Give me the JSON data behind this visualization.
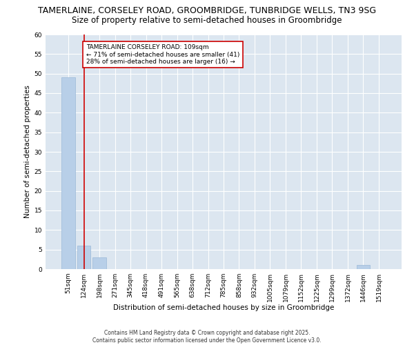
{
  "title1": "TAMERLAINE, CORSELEY ROAD, GROOMBRIDGE, TUNBRIDGE WELLS, TN3 9SG",
  "title2": "Size of property relative to semi-detached houses in Groombridge",
  "xlabel": "Distribution of semi-detached houses by size in Groombridge",
  "ylabel": "Number of semi-detached properties",
  "categories": [
    "51sqm",
    "124sqm",
    "198sqm",
    "271sqm",
    "345sqm",
    "418sqm",
    "491sqm",
    "565sqm",
    "638sqm",
    "712sqm",
    "785sqm",
    "858sqm",
    "932sqm",
    "1005sqm",
    "1079sqm",
    "1152sqm",
    "1225sqm",
    "1299sqm",
    "1372sqm",
    "1446sqm",
    "1519sqm"
  ],
  "values": [
    49,
    6,
    3,
    0,
    0,
    0,
    0,
    0,
    0,
    0,
    0,
    0,
    0,
    0,
    0,
    0,
    0,
    0,
    0,
    1,
    0
  ],
  "bar_color": "#b8cfe8",
  "bar_edge_color": "#9ab8d8",
  "bg_color": "#dce6f0",
  "grid_color": "#ffffff",
  "red_line_x": 1.0,
  "annotation_text": "TAMERLAINE CORSELEY ROAD: 109sqm\n← 71% of semi-detached houses are smaller (41)\n28% of semi-detached houses are larger (16) →",
  "annotation_box_color": "#ffffff",
  "annotation_border_color": "#cc0000",
  "red_line_color": "#cc0000",
  "ylim": [
    0,
    60
  ],
  "yticks": [
    0,
    5,
    10,
    15,
    20,
    25,
    30,
    35,
    40,
    45,
    50,
    55,
    60
  ],
  "footer": "Contains HM Land Registry data © Crown copyright and database right 2025.\nContains public sector information licensed under the Open Government Licence v3.0.",
  "title_fontsize": 9,
  "subtitle_fontsize": 8.5,
  "tick_fontsize": 6.5,
  "label_fontsize": 7.5,
  "annotation_fontsize": 6.5,
  "footer_fontsize": 5.5
}
